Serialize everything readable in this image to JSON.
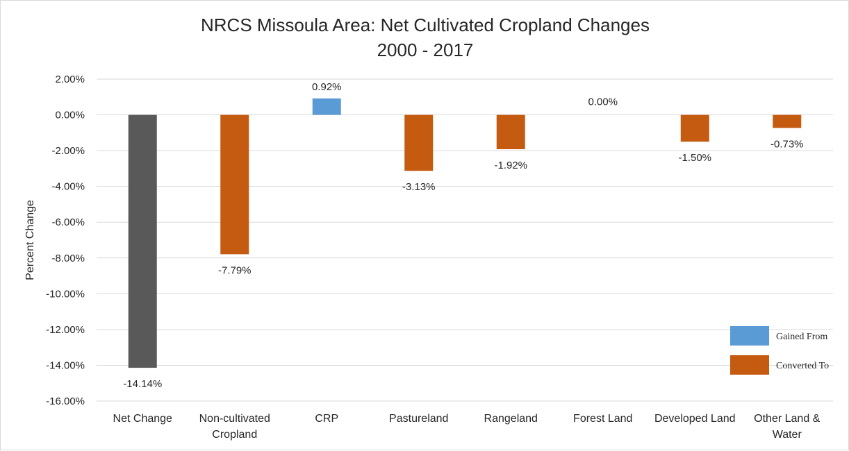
{
  "chart_data": {
    "type": "bar",
    "title_line1": "NRCS Missoula Area: Net Cultivated Cropland Changes",
    "title_line2": "2000 - 2017",
    "ylabel": "Percent Change",
    "xlabel": "",
    "ylim": [
      -16,
      2
    ],
    "y_ticks": [
      2,
      0,
      -2,
      -4,
      -6,
      -8,
      -10,
      -12,
      -14,
      -16
    ],
    "y_tick_labels": [
      "2.00%",
      "0.00%",
      "-2.00%",
      "-4.00%",
      "-6.00%",
      "-8.00%",
      "-10.00%",
      "-12.00%",
      "-14.00%",
      "-16.00%"
    ],
    "grid": true,
    "categories": [
      [
        "Net Change"
      ],
      [
        "Non-cultivated",
        "Cropland"
      ],
      [
        "CRP"
      ],
      [
        "Pastureland"
      ],
      [
        "Rangeland"
      ],
      [
        "Forest Land"
      ],
      [
        "Developed Land"
      ],
      [
        "Other Land &",
        "Water"
      ]
    ],
    "values": [
      -14.14,
      -7.79,
      0.92,
      -3.13,
      -1.92,
      0.0,
      -1.5,
      -0.73
    ],
    "data_labels": [
      "-14.14%",
      "-7.79%",
      "0.92%",
      "-3.13%",
      "-1.92%",
      "0.00%",
      "-1.50%",
      "-0.73%"
    ],
    "bar_groups": [
      "net",
      "converted",
      "gained",
      "converted",
      "converted",
      "gained",
      "converted",
      "converted"
    ],
    "legend_position": "bottom-right",
    "legend": [
      {
        "key": "gained",
        "label": "Gained From",
        "color": "#5b9bd5"
      },
      {
        "key": "converted",
        "label": "Converted To",
        "color": "#c55a11"
      }
    ],
    "colors": {
      "net": "#595959",
      "gained": "#5b9bd5",
      "converted": "#c55a11",
      "grid": "#d9d9d9"
    }
  }
}
